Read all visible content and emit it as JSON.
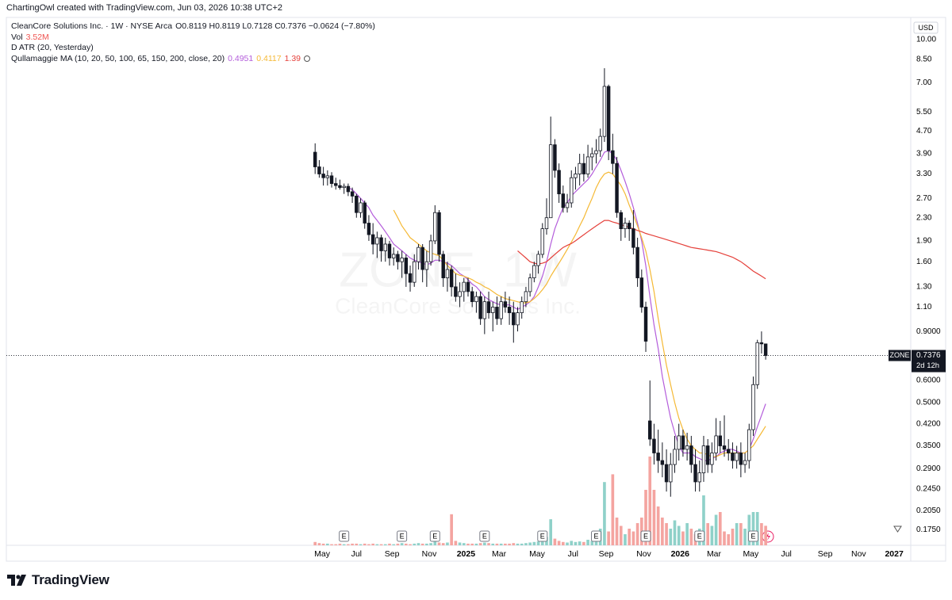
{
  "header": "ChartingOwl created with TradingView.com, Jun 03, 2026 10:38 UTC+2",
  "legend": {
    "title": "CleanCore Solutions Inc. · 1W · NYSE Arca",
    "ohlc": "O0.8119 H0.8119 L0.7128 C0.7376 −0.0624 (−7.80%)",
    "vol_label": "Vol",
    "vol_value": "3.52M",
    "atr_label": "D ATR (20, Yesterday)",
    "ma_label": "Qullamaggie MA (10, 20, 50, 100, 65, 150, 200, close, 20)"
  },
  "watermark": {
    "symbol": "ZONE, 1W",
    "name": "CleanCore Solutions Inc."
  },
  "price_scale": {
    "currency": "USD",
    "symbol": "ZONE",
    "countdown": "2d 12h"
  },
  "footer": {
    "brand": "TradingView"
  },
  "chart_data": {
    "type": "candlestick",
    "log_scale": true,
    "grid": false,
    "up_color": "#ffffff",
    "down_color": "#131722",
    "wick_color": "#131722",
    "volume_up_color": "#8fd1c9",
    "volume_down_color": "#f4a4a0",
    "xlim": [
      -74.7,
      144.1
    ],
    "ylim": [
      0.154,
      11.78
    ],
    "volume_lim": [
      0,
      20
    ],
    "xticks": [
      {
        "value": 1.7,
        "label": "May"
      },
      {
        "value": 10,
        "label": "Jul"
      },
      {
        "value": 18.6,
        "label": "Sep"
      },
      {
        "value": 27.6,
        "label": "Nov"
      },
      {
        "value": 36.5,
        "label": "2025"
      },
      {
        "value": 44.5,
        "label": "Mar"
      },
      {
        "value": 53.7,
        "label": "May"
      },
      {
        "value": 62.4,
        "label": "Jul"
      },
      {
        "value": 70.4,
        "label": "Sep"
      },
      {
        "value": 79.5,
        "label": "Nov"
      },
      {
        "value": 88.3,
        "label": "2026"
      },
      {
        "value": 96.5,
        "label": "Mar"
      },
      {
        "value": 105.4,
        "label": "May"
      },
      {
        "value": 114,
        "label": "Jul"
      },
      {
        "value": 123.4,
        "label": "Sep"
      },
      {
        "value": 131.5,
        "label": "Nov"
      },
      {
        "value": 140.1,
        "label": "2027"
      }
    ],
    "yticks": [
      {
        "value": 10,
        "label": "10.00"
      },
      {
        "value": 8.5,
        "label": "8.50"
      },
      {
        "value": 7,
        "label": "7.00"
      },
      {
        "value": 5.5,
        "label": "5.50"
      },
      {
        "value": 4.7,
        "label": "4.70"
      },
      {
        "value": 3.9,
        "label": "3.90"
      },
      {
        "value": 3.3,
        "label": "3.30"
      },
      {
        "value": 2.7,
        "label": "2.70"
      },
      {
        "value": 2.3,
        "label": "2.30"
      },
      {
        "value": 1.9,
        "label": "1.90"
      },
      {
        "value": 1.6,
        "label": "1.60"
      },
      {
        "value": 1.3,
        "label": "1.30"
      },
      {
        "value": 1.1,
        "label": "1.10"
      },
      {
        "value": 0.9,
        "label": "0.9000"
      },
      {
        "value": 0.6,
        "label": "0.6000"
      },
      {
        "value": 0.5,
        "label": "0.5000"
      },
      {
        "value": 0.42,
        "label": "0.4200"
      },
      {
        "value": 0.35,
        "label": "0.3500"
      },
      {
        "value": 0.29,
        "label": "0.2900"
      },
      {
        "value": 0.245,
        "label": "0.2450"
      },
      {
        "value": 0.205,
        "label": "0.2050"
      },
      {
        "value": 0.175,
        "label": "0.1750"
      }
    ],
    "x": [
      0,
      1,
      2,
      3,
      4,
      5,
      6,
      7,
      8,
      9,
      10,
      11,
      12,
      13,
      14,
      15,
      16,
      17,
      18,
      19,
      20,
      21,
      22,
      23,
      24,
      25,
      26,
      27,
      28,
      29,
      30,
      31,
      32,
      33,
      34,
      35,
      36,
      37,
      38,
      39,
      40,
      41,
      42,
      43,
      44,
      45,
      46,
      47,
      48,
      49,
      50,
      51,
      52,
      53,
      54,
      55,
      56,
      57,
      58,
      59,
      60,
      61,
      62,
      63,
      64,
      65,
      66,
      67,
      68,
      69,
      70,
      71,
      72,
      73,
      74,
      75,
      76,
      77,
      78,
      79,
      80,
      81,
      82,
      83,
      84,
      85,
      86,
      87,
      88,
      89,
      90,
      91,
      92,
      93,
      94,
      95,
      96,
      97,
      98,
      99,
      100,
      101,
      102,
      103,
      104,
      105,
      106,
      107,
      108,
      109
    ],
    "open": [
      3.95,
      3.5,
      3.3,
      3.2,
      3.25,
      3.05,
      3.0,
      2.95,
      2.98,
      2.85,
      2.75,
      2.4,
      2.6,
      2.2,
      2.0,
      1.85,
      1.95,
      1.75,
      1.85,
      1.65,
      1.7,
      1.6,
      1.65,
      1.45,
      1.35,
      1.6,
      1.8,
      1.5,
      1.6,
      1.9,
      2.4,
      1.7,
      1.4,
      1.5,
      1.3,
      1.2,
      1.25,
      1.35,
      1.25,
      1.15,
      1.2,
      1.0,
      1.15,
      1.05,
      1.1,
      1.0,
      1.15,
      1.1,
      1.05,
      0.95,
      1.05,
      1.15,
      1.25,
      1.4,
      1.55,
      1.7,
      2.1,
      2.3,
      4.2,
      3.4,
      2.8,
      2.5,
      2.6,
      3.2,
      3.3,
      3.6,
      3.3,
      3.8,
      3.9,
      4.0,
      4.5,
      6.8,
      4.0,
      3.6,
      2.4,
      2.1,
      2.2,
      2.1,
      1.8,
      1.4,
      1.1,
      0.43,
      0.37,
      0.33,
      0.31,
      0.3,
      0.26,
      0.3,
      0.34,
      0.38,
      0.34,
      0.35,
      0.3,
      0.26,
      0.28,
      0.35,
      0.3,
      0.33,
      0.38,
      0.35,
      0.34,
      0.33,
      0.31,
      0.33,
      0.3,
      0.31,
      0.4,
      0.58,
      0.82,
      0.8119
    ],
    "high": [
      4.25,
      3.7,
      3.5,
      3.4,
      3.35,
      3.2,
      3.15,
      3.05,
      3.05,
      2.95,
      2.8,
      2.7,
      2.65,
      2.35,
      2.2,
      2.05,
      2.0,
      1.95,
      1.9,
      1.8,
      1.75,
      1.75,
      1.7,
      1.55,
      1.7,
      1.85,
      1.85,
      1.75,
      2.0,
      2.55,
      2.45,
      1.75,
      1.6,
      1.55,
      1.45,
      1.35,
      1.4,
      1.4,
      1.3,
      1.25,
      1.25,
      1.2,
      1.25,
      1.15,
      1.2,
      1.2,
      1.25,
      1.2,
      1.15,
      1.1,
      1.2,
      1.3,
      1.45,
      1.6,
      1.75,
      2.2,
      2.7,
      5.3,
      4.4,
      3.6,
      3.0,
      2.8,
      3.4,
      3.5,
      3.9,
      3.9,
      4.2,
      4.1,
      4.4,
      4.8,
      7.9,
      6.9,
      4.6,
      3.8,
      2.45,
      2.3,
      2.25,
      2.45,
      1.95,
      1.5,
      1.15,
      0.6,
      0.42,
      0.4,
      0.36,
      0.34,
      0.33,
      0.38,
      0.42,
      0.4,
      0.39,
      0.38,
      0.34,
      0.31,
      0.38,
      0.37,
      0.36,
      0.44,
      0.43,
      0.45,
      0.37,
      0.36,
      0.35,
      0.36,
      0.33,
      0.42,
      0.62,
      0.84,
      0.9,
      0.8119
    ],
    "low": [
      3.3,
      3.2,
      3.0,
      3.0,
      2.95,
      2.9,
      2.9,
      2.8,
      2.75,
      2.6,
      2.3,
      2.3,
      2.1,
      1.9,
      1.7,
      1.65,
      1.6,
      1.6,
      1.55,
      1.55,
      1.5,
      1.4,
      1.3,
      1.25,
      1.3,
      1.5,
      1.35,
      1.3,
      1.55,
      1.85,
      1.6,
      1.3,
      1.25,
      1.2,
      1.15,
      1.1,
      1.15,
      1.2,
      1.1,
      1.05,
      0.95,
      0.88,
      1.0,
      0.9,
      0.95,
      0.95,
      1.05,
      0.95,
      0.82,
      0.9,
      1.0,
      1.1,
      1.2,
      1.35,
      1.45,
      1.65,
      2.0,
      2.3,
      3.2,
      2.6,
      2.4,
      2.4,
      2.5,
      2.9,
      3.0,
      3.1,
      3.2,
      3.4,
      3.6,
      3.8,
      4.3,
      3.7,
      3.3,
      2.3,
      1.9,
      1.95,
      1.9,
      1.7,
      1.3,
      1.05,
      0.76,
      0.35,
      0.3,
      0.28,
      0.27,
      0.24,
      0.23,
      0.28,
      0.31,
      0.32,
      0.31,
      0.28,
      0.24,
      0.24,
      0.26,
      0.28,
      0.28,
      0.31,
      0.33,
      0.32,
      0.31,
      0.29,
      0.29,
      0.27,
      0.28,
      0.29,
      0.38,
      0.56,
      0.75,
      0.7128
    ],
    "close": [
      3.5,
      3.3,
      3.2,
      3.25,
      3.05,
      3.0,
      2.95,
      2.98,
      2.85,
      2.75,
      2.4,
      2.6,
      2.2,
      2.0,
      1.85,
      1.95,
      1.75,
      1.85,
      1.65,
      1.7,
      1.6,
      1.65,
      1.45,
      1.35,
      1.6,
      1.8,
      1.5,
      1.6,
      1.9,
      2.4,
      1.7,
      1.4,
      1.5,
      1.3,
      1.2,
      1.25,
      1.35,
      1.25,
      1.15,
      1.2,
      1.0,
      1.15,
      1.05,
      1.1,
      1.0,
      1.15,
      1.1,
      1.05,
      0.95,
      1.05,
      1.15,
      1.25,
      1.4,
      1.55,
      1.7,
      2.1,
      2.3,
      4.2,
      3.4,
      2.8,
      2.5,
      2.6,
      3.2,
      3.3,
      3.6,
      3.3,
      3.8,
      3.9,
      4.0,
      4.5,
      6.8,
      4.0,
      3.6,
      2.4,
      2.1,
      2.2,
      2.1,
      1.8,
      1.4,
      1.1,
      0.83,
      0.37,
      0.33,
      0.31,
      0.3,
      0.26,
      0.3,
      0.34,
      0.38,
      0.34,
      0.35,
      0.3,
      0.26,
      0.28,
      0.35,
      0.3,
      0.33,
      0.38,
      0.35,
      0.34,
      0.33,
      0.31,
      0.33,
      0.3,
      0.31,
      0.4,
      0.58,
      0.82,
      0.8119,
      0.7376
    ],
    "volume": [
      0.6,
      0.4,
      0.3,
      0.3,
      0.2,
      0.2,
      0.3,
      0.2,
      0.2,
      0.3,
      0.3,
      0.2,
      0.3,
      0.2,
      0.3,
      0.2,
      0.2,
      0.2,
      0.3,
      0.2,
      0.3,
      0.4,
      0.3,
      0.2,
      0.3,
      0.4,
      0.3,
      0.3,
      0.4,
      1.2,
      0.5,
      0.4,
      0.5,
      5.6,
      0.8,
      0.5,
      0.4,
      0.3,
      0.3,
      0.3,
      0.4,
      0.5,
      0.4,
      0.3,
      0.3,
      0.3,
      0.3,
      0.3,
      0.4,
      0.3,
      0.3,
      0.4,
      0.5,
      0.6,
      0.7,
      1.0,
      1.5,
      4.7,
      1.2,
      0.8,
      0.6,
      0.5,
      0.8,
      0.6,
      0.7,
      0.6,
      1.0,
      0.8,
      2.0,
      3.0,
      11.4,
      2.5,
      12.8,
      5.0,
      3.5,
      2.0,
      3.0,
      2.5,
      4.0,
      5.0,
      10.0,
      16.0,
      10.0,
      7.0,
      5.0,
      4.0,
      3.0,
      4.5,
      3.5,
      2.5,
      4.0,
      3.0,
      2.0,
      3.0,
      9.0,
      4.0,
      3.5,
      5.5,
      6.0,
      2.5,
      2.0,
      3.0,
      4.0,
      4.0,
      3.0,
      5.5,
      6.0,
      6.0,
      4.0,
      3.52
    ],
    "moving_averages": [
      {
        "color": "#b45ddb",
        "values": [
          null,
          null,
          null,
          null,
          null,
          null,
          null,
          null,
          2.95,
          2.9,
          2.8,
          2.7,
          2.6,
          2.5,
          2.35,
          2.25,
          2.15,
          2.05,
          1.95,
          1.85,
          1.8,
          1.75,
          1.7,
          1.65,
          1.62,
          1.6,
          1.58,
          1.56,
          1.58,
          1.62,
          1.62,
          1.6,
          1.58,
          1.55,
          1.5,
          1.45,
          1.42,
          1.38,
          1.33,
          1.3,
          1.25,
          1.2,
          1.17,
          1.15,
          1.13,
          1.12,
          1.12,
          1.12,
          1.1,
          1.08,
          1.1,
          1.12,
          1.15,
          1.2,
          1.3,
          1.42,
          1.6,
          1.85,
          2.1,
          2.3,
          2.5,
          2.6,
          2.75,
          2.85,
          2.95,
          3.05,
          3.15,
          3.3,
          3.5,
          3.7,
          3.95,
          4.0,
          3.9,
          3.7,
          3.4,
          3.1,
          2.8,
          2.5,
          2.2,
          1.9,
          1.55,
          1.2,
          0.95,
          0.78,
          0.62,
          0.52,
          0.44,
          0.39,
          0.35,
          0.33,
          0.33,
          0.33,
          0.32,
          0.315,
          0.31,
          0.31,
          0.315,
          0.32,
          0.33,
          0.335,
          0.34,
          0.34,
          0.335,
          0.33,
          0.33,
          0.34,
          0.37,
          0.41,
          0.45,
          0.4951
        ]
      },
      {
        "color": "#f5b935",
        "values": [
          null,
          null,
          null,
          null,
          null,
          null,
          null,
          null,
          null,
          null,
          null,
          null,
          null,
          null,
          null,
          null,
          null,
          null,
          null,
          2.45,
          2.3,
          2.15,
          2.05,
          1.95,
          1.9,
          1.85,
          1.8,
          1.75,
          1.72,
          1.7,
          1.68,
          1.62,
          1.55,
          1.5,
          1.45,
          1.43,
          1.42,
          1.4,
          1.38,
          1.35,
          1.33,
          1.3,
          1.28,
          1.25,
          1.22,
          1.2,
          1.18,
          1.17,
          1.16,
          1.15,
          1.14,
          1.14,
          1.15,
          1.18,
          1.22,
          1.27,
          1.33,
          1.42,
          1.5,
          1.58,
          1.67,
          1.77,
          1.88,
          2.0,
          2.15,
          2.3,
          2.5,
          2.7,
          2.95,
          3.15,
          3.3,
          3.35,
          3.3,
          3.15,
          3.0,
          2.8,
          2.55,
          2.35,
          2.15,
          1.95,
          1.75,
          1.5,
          1.25,
          1.0,
          0.82,
          0.68,
          0.58,
          0.5,
          0.44,
          0.4,
          0.37,
          0.35,
          0.34,
          0.33,
          0.33,
          0.325,
          0.32,
          0.32,
          0.325,
          0.33,
          0.33,
          0.33,
          0.33,
          0.33,
          0.33,
          0.34,
          0.35,
          0.37,
          0.39,
          0.4117
        ]
      },
      {
        "color": "#e5413b",
        "values": [
          null,
          null,
          null,
          null,
          null,
          null,
          null,
          null,
          null,
          null,
          null,
          null,
          null,
          null,
          null,
          null,
          null,
          null,
          null,
          null,
          null,
          null,
          null,
          null,
          null,
          null,
          null,
          null,
          null,
          null,
          null,
          null,
          null,
          null,
          null,
          null,
          null,
          null,
          null,
          null,
          null,
          null,
          null,
          null,
          null,
          null,
          null,
          null,
          null,
          1.75,
          1.7,
          1.65,
          1.6,
          1.58,
          1.57,
          1.58,
          1.6,
          1.65,
          1.7,
          1.75,
          1.8,
          1.83,
          1.86,
          1.9,
          1.95,
          2.0,
          2.05,
          2.1,
          2.15,
          2.2,
          2.25,
          2.25,
          2.22,
          2.2,
          2.17,
          2.15,
          2.12,
          2.1,
          2.07,
          2.05,
          2.02,
          2.0,
          1.98,
          1.96,
          1.94,
          1.92,
          1.9,
          1.88,
          1.86,
          1.84,
          1.82,
          1.8,
          1.79,
          1.78,
          1.77,
          1.76,
          1.75,
          1.74,
          1.72,
          1.7,
          1.68,
          1.66,
          1.63,
          1.6,
          1.56,
          1.52,
          1.48,
          1.45,
          1.42,
          1.39
        ]
      }
    ],
    "earnings": {
      "label": "E",
      "x": [
        7,
        21,
        29,
        41,
        55,
        68,
        80,
        93,
        106
      ]
    }
  }
}
